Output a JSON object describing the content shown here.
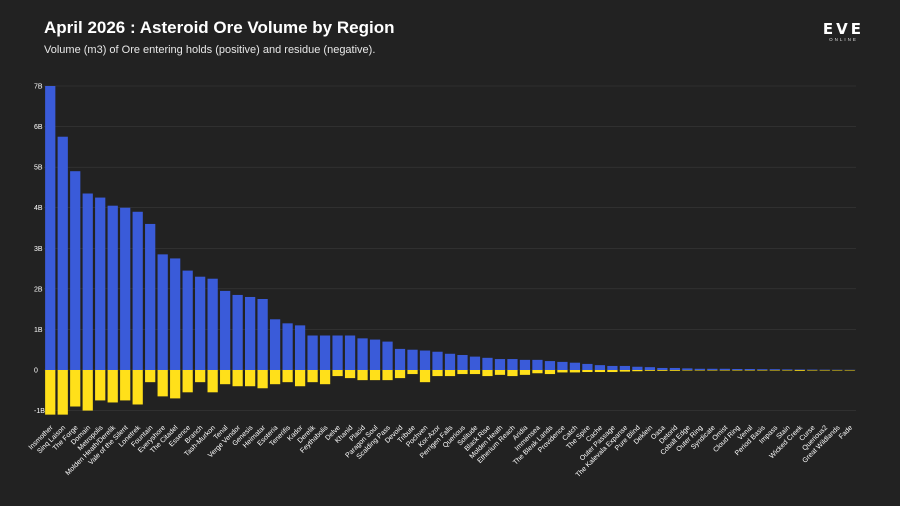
{
  "title": "April 2026 : Asteroid Ore Volume by Region",
  "subtitle": "Volume (m3) of Ore entering holds (positive) and residue (negative).",
  "logo": {
    "main": "EVE",
    "sub": "ONLINE"
  },
  "colors": {
    "positive": "#3a5bd9",
    "negative": "#ffe01a",
    "background": "#222222",
    "grid": "#3a3a3a"
  },
  "chart_data": {
    "type": "bar",
    "stacked": true,
    "title": "April 2026 : Asteroid Ore Volume by Region",
    "subtitle": "Volume (m3) of Ore entering holds (positive) and residue (negative).",
    "xlabel": "",
    "ylabel": "",
    "ylim": [
      -1.2,
      7.0
    ],
    "yticks": [
      -1,
      0,
      1,
      2,
      3,
      4,
      5,
      6,
      7
    ],
    "ytick_labels": [
      "-1B",
      "0",
      "1B",
      "2B",
      "3B",
      "4B",
      "5B",
      "6B",
      "7B"
    ],
    "unit": "billion m3",
    "grid": true,
    "categories": [
      "Insmother",
      "Sinq Laison",
      "The Forge",
      "Domain",
      "Metropolis",
      "Molden Heath/Derelik",
      "Vale of the Silent",
      "Lonetrek",
      "Fountain",
      "Everyshore",
      "The Citadel",
      "Essence",
      "Branch",
      "Tash-Murkon",
      "Tenal",
      "Verge Vendor",
      "Genesis",
      "Heimatar",
      "Esoteria",
      "Tenerifis",
      "Kador",
      "Derelik",
      "Feythabolis",
      "Delve",
      "Khanid",
      "Placid",
      "Paragon Soul",
      "Scalding Pass",
      "Devoid",
      "Tribute",
      "Pochven",
      "Kor-Azor",
      "Perrigen Falls",
      "Querious",
      "Solitude",
      "Black Rise",
      "Molden Heath",
      "Etherium Reach",
      "Aridia",
      "Immensea",
      "The Bleak Lands",
      "Providence",
      "Catch",
      "The Spire",
      "Cache",
      "Outer Passage",
      "The Kalevala Expanse",
      "Pure Blind",
      "Deklein",
      "Oasa",
      "Detorid",
      "Cobalt Edge",
      "Outer Ring",
      "Syndicate",
      "Omist",
      "Cloud Ring",
      "Venal",
      "Period Basis",
      "Impass",
      "Stain",
      "Wicked Creek",
      "Curse",
      "Querious2",
      "Great Wildlands",
      "Fade"
    ],
    "series": [
      {
        "name": "",
        "values": [
          7.0,
          5.75,
          4.9,
          4.35,
          4.25,
          4.05,
          4.0,
          3.9,
          3.6,
          2.85,
          2.75,
          2.45,
          2.3,
          2.25,
          1.95,
          1.85,
          1.8,
          1.75,
          1.25,
          1.15,
          1.1,
          0.85,
          0.85,
          0.85,
          0.85,
          0.78,
          0.75,
          0.7,
          0.52,
          0.5,
          0.48,
          0.45,
          0.4,
          0.37,
          0.33,
          0.3,
          0.27,
          0.27,
          0.25,
          0.25,
          0.22,
          0.2,
          0.18,
          0.15,
          0.12,
          0.1,
          0.1,
          0.08,
          0.07,
          0.05,
          0.05,
          0.04,
          0.03,
          0.03,
          0.03,
          0.025,
          0.025,
          0.02,
          0.02,
          0.015,
          0.012,
          0.01,
          0.008,
          0.006,
          0.004
        ]
      },
      {
        "name": "",
        "values": [
          -1.1,
          -1.1,
          -0.9,
          -1.0,
          -0.75,
          -0.8,
          -0.75,
          -0.85,
          -0.3,
          -0.65,
          -0.7,
          -0.55,
          -0.3,
          -0.55,
          -0.35,
          -0.4,
          -0.4,
          -0.45,
          -0.35,
          -0.3,
          -0.4,
          -0.3,
          -0.35,
          -0.15,
          -0.2,
          -0.25,
          -0.25,
          -0.25,
          -0.2,
          -0.1,
          -0.3,
          -0.15,
          -0.15,
          -0.1,
          -0.1,
          -0.15,
          -0.12,
          -0.15,
          -0.12,
          -0.08,
          -0.1,
          -0.06,
          -0.06,
          -0.05,
          -0.05,
          -0.05,
          -0.04,
          -0.03,
          -0.02,
          -0.02,
          -0.02,
          -0.01,
          -0.01,
          -0.01,
          -0.01,
          -0.01,
          -0.01,
          -0.01,
          -0.01,
          -0.005,
          -0.02,
          -0.005,
          -0.005,
          -0.003,
          -0.002
        ]
      }
    ]
  }
}
